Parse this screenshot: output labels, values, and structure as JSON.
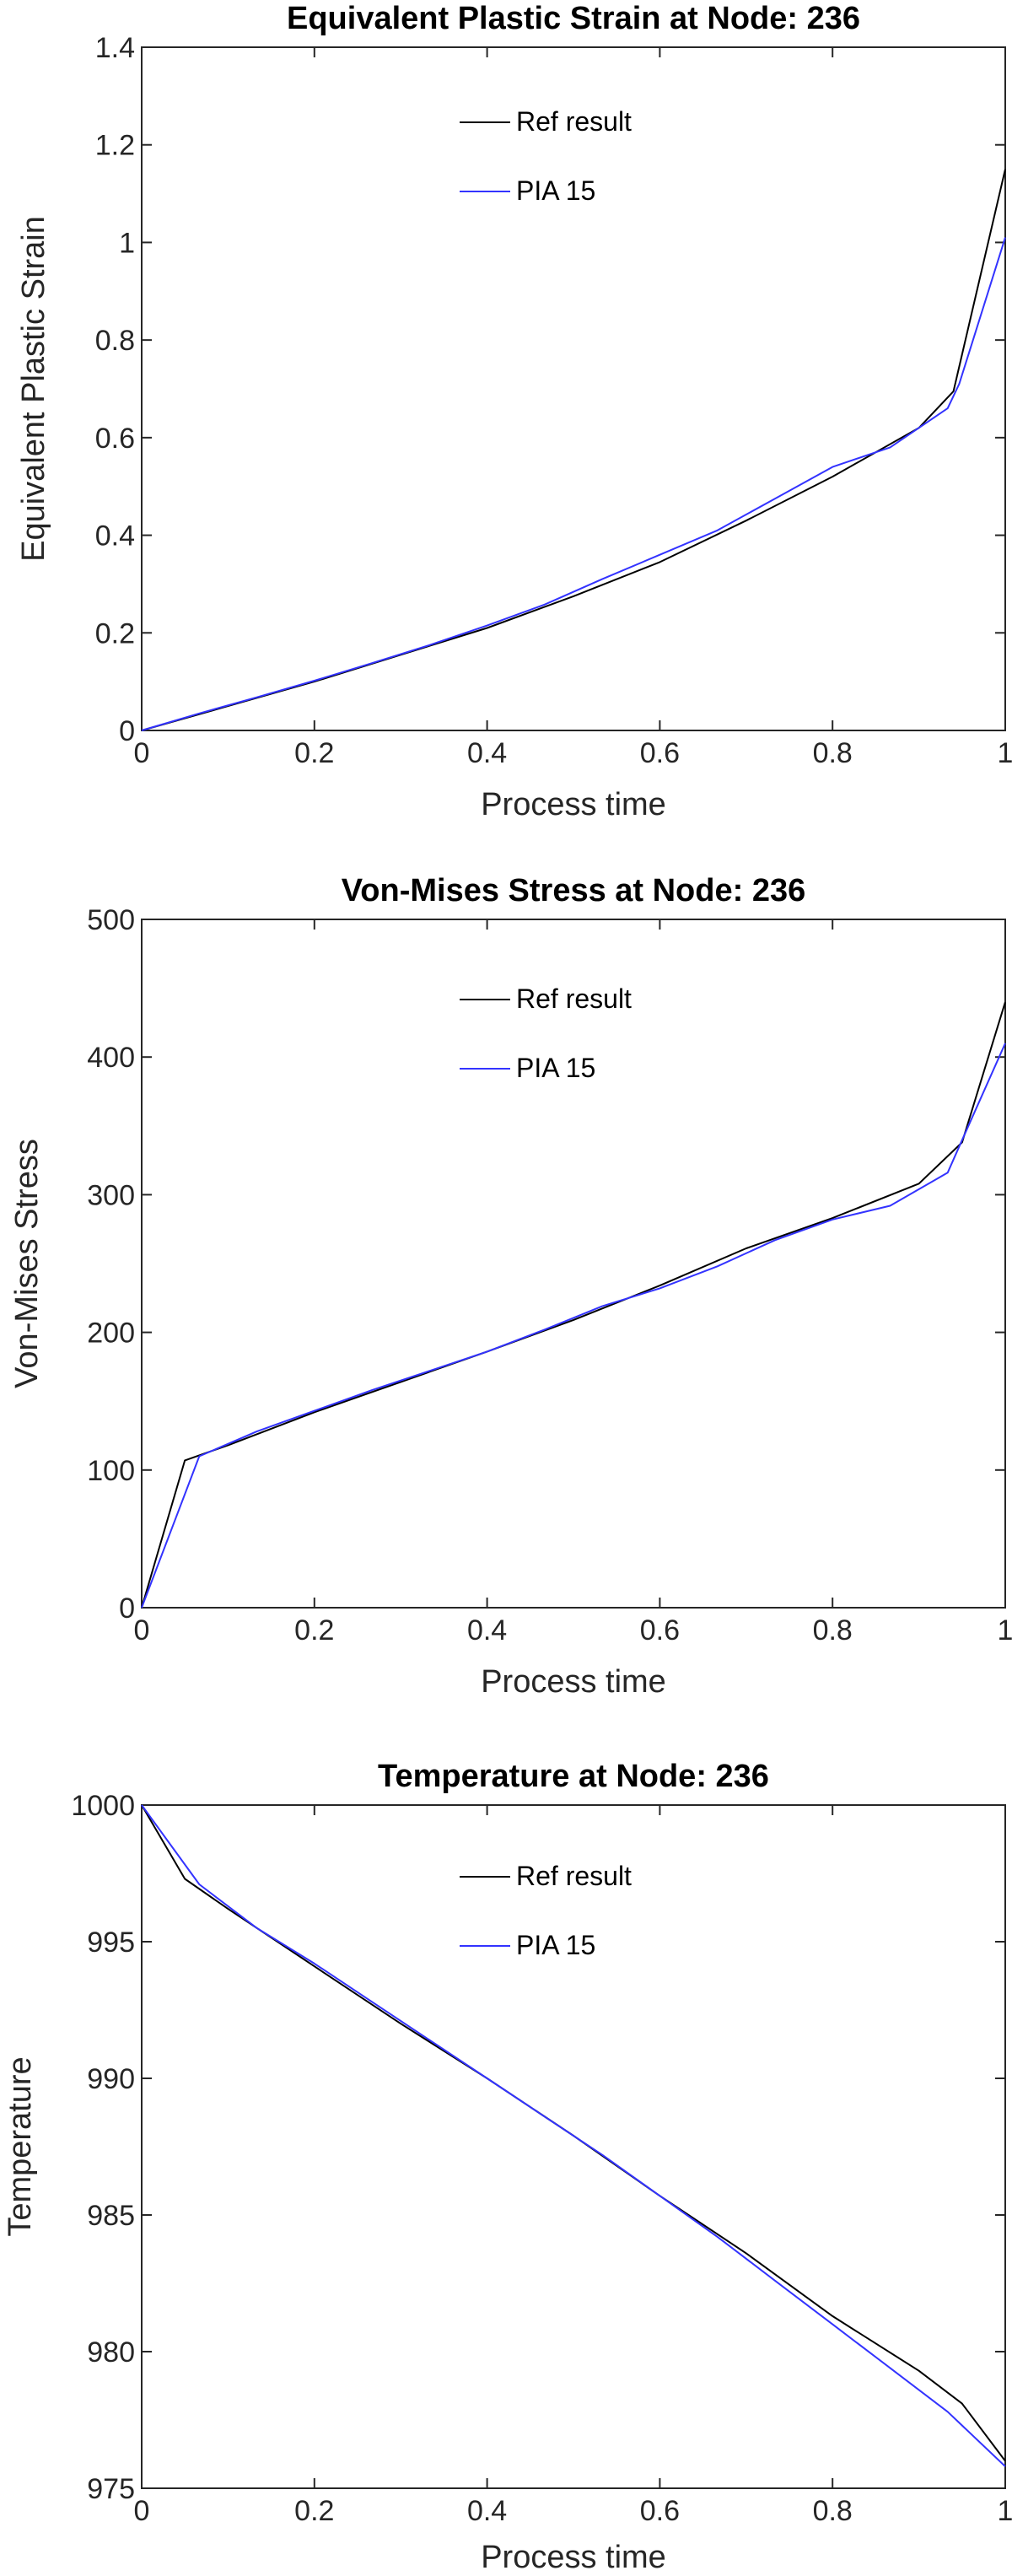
{
  "chart_data": [
    {
      "type": "line",
      "title": "Equivalent Plastic Strain at Node: 236",
      "xlabel": "Process time",
      "ylabel": "Equivalent Plastic Strain",
      "xlim": [
        0,
        1
      ],
      "ylim": [
        0,
        1.4
      ],
      "xticks": [
        0,
        0.2,
        0.4,
        0.6,
        0.8,
        1
      ],
      "xtick_labels": [
        "0",
        "0.2",
        "0.4",
        "0.6",
        "0.8",
        "1"
      ],
      "yticks": [
        0,
        0.2,
        0.4,
        0.6,
        0.8,
        1,
        1.2,
        1.4
      ],
      "ytick_labels": [
        "0",
        "0.2",
        "0.4",
        "0.6",
        "0.8",
        "1",
        "1.2",
        "1.4"
      ],
      "grid": false,
      "legend": "top-center",
      "series": [
        {
          "name": "Ref result",
          "color": "#000000",
          "x": [
            0,
            0.1,
            0.2,
            0.3,
            0.4,
            0.5,
            0.6,
            0.7,
            0.8,
            0.9,
            0.94,
            1.0
          ],
          "y": [
            0,
            0.05,
            0.1,
            0.155,
            0.21,
            0.275,
            0.345,
            0.43,
            0.52,
            0.62,
            0.695,
            1.15
          ]
        },
        {
          "name": "PIA 15",
          "color": "#3333ff",
          "x": [
            0,
            0.0667,
            0.1333,
            0.2,
            0.2667,
            0.3333,
            0.4,
            0.4667,
            0.5333,
            0.6,
            0.6667,
            0.7333,
            0.8,
            0.8667,
            0.9333,
            0.9467,
            1.0
          ],
          "y": [
            0,
            0.035,
            0.068,
            0.102,
            0.138,
            0.175,
            0.215,
            0.258,
            0.31,
            0.36,
            0.41,
            0.475,
            0.54,
            0.58,
            0.66,
            0.71,
            1.01
          ]
        }
      ]
    },
    {
      "type": "line",
      "title": "Von-Mises Stress at Node: 236",
      "xlabel": "Process time",
      "ylabel": "Von-Mises Stress",
      "xlim": [
        0,
        1
      ],
      "ylim": [
        0,
        500
      ],
      "xticks": [
        0,
        0.2,
        0.4,
        0.6,
        0.8,
        1
      ],
      "xtick_labels": [
        "0",
        "0.2",
        "0.4",
        "0.6",
        "0.8",
        "1"
      ],
      "yticks": [
        0,
        100,
        200,
        300,
        400,
        500
      ],
      "ytick_labels": [
        "0",
        "100",
        "200",
        "300",
        "400",
        "500"
      ],
      "grid": false,
      "legend": "top-center",
      "series": [
        {
          "name": "Ref result",
          "color": "#000000",
          "x": [
            0,
            0.05,
            0.1,
            0.2,
            0.3,
            0.4,
            0.5,
            0.6,
            0.7,
            0.8,
            0.9,
            0.95,
            1.0
          ],
          "y": [
            0,
            107,
            118,
            142,
            164,
            186,
            209,
            234,
            261,
            283,
            308,
            338,
            440
          ]
        },
        {
          "name": "PIA 15",
          "color": "#3333ff",
          "x": [
            0,
            0.0667,
            0.1333,
            0.2,
            0.2667,
            0.3333,
            0.4,
            0.4667,
            0.5333,
            0.6,
            0.6667,
            0.7333,
            0.8,
            0.8667,
            0.9333,
            0.9467,
            1.0
          ],
          "y": [
            0,
            110,
            128,
            143,
            158,
            172,
            186,
            202,
            219,
            232,
            248,
            267,
            282,
            292,
            316,
            335,
            410
          ]
        }
      ]
    },
    {
      "type": "line",
      "title": "Temperature at Node: 236",
      "xlabel": "Process time",
      "ylabel": "Temperature",
      "xlim": [
        0,
        1
      ],
      "ylim": [
        975,
        1000
      ],
      "xticks": [
        0,
        0.2,
        0.4,
        0.6,
        0.8,
        1
      ],
      "xtick_labels": [
        "0",
        "0.2",
        "0.4",
        "0.6",
        "0.8",
        "1"
      ],
      "yticks": [
        975,
        980,
        985,
        990,
        995,
        1000
      ],
      "ytick_labels": [
        "975",
        "980",
        "985",
        "990",
        "995",
        "1000"
      ],
      "grid": false,
      "legend": "top-center",
      "series": [
        {
          "name": "Ref result",
          "color": "#000000",
          "x": [
            0,
            0.05,
            0.1,
            0.2,
            0.3,
            0.4,
            0.5,
            0.6,
            0.7,
            0.8,
            0.9,
            0.95,
            1.0
          ],
          "y": [
            1000,
            997.3,
            996.2,
            994.1,
            992.0,
            990.0,
            987.9,
            985.7,
            983.6,
            981.3,
            979.3,
            978.1,
            976.0
          ],
          "note": ""
        },
        {
          "name": "PIA 15",
          "color": "#3333ff",
          "x": [
            0,
            0.0667,
            0.1333,
            0.2,
            0.2667,
            0.3333,
            0.4,
            0.4667,
            0.5333,
            0.6,
            0.6667,
            0.7333,
            0.8,
            0.8667,
            0.9333,
            1.0
          ],
          "y": [
            1000,
            997.1,
            995.5,
            994.2,
            992.8,
            991.4,
            990.0,
            988.6,
            987.2,
            985.7,
            984.2,
            982.6,
            981.0,
            979.4,
            977.8,
            975.8
          ]
        }
      ]
    }
  ]
}
